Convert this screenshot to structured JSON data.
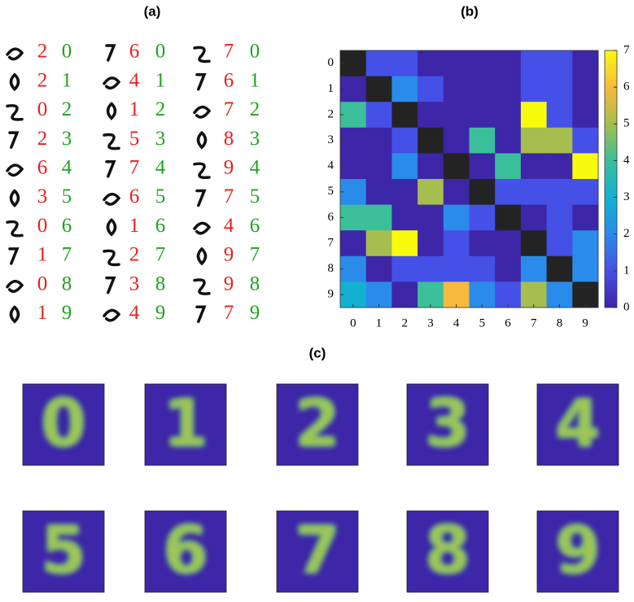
{
  "panel_a": {
    "title": "(a)",
    "rows": [
      [
        [
          2,
          0
        ],
        [
          6,
          0
        ],
        [
          7,
          0
        ]
      ],
      [
        [
          2,
          1
        ],
        [
          4,
          1
        ],
        [
          6,
          1
        ]
      ],
      [
        [
          0,
          2
        ],
        [
          1,
          2
        ],
        [
          7,
          2
        ]
      ],
      [
        [
          2,
          3
        ],
        [
          5,
          3
        ],
        [
          8,
          3
        ]
      ],
      [
        [
          6,
          4
        ],
        [
          7,
          4
        ],
        [
          9,
          4
        ]
      ],
      [
        [
          3,
          5
        ],
        [
          6,
          5
        ],
        [
          7,
          5
        ]
      ],
      [
        [
          0,
          6
        ],
        [
          1,
          6
        ],
        [
          4,
          6
        ]
      ],
      [
        [
          1,
          7
        ],
        [
          2,
          7
        ],
        [
          9,
          7
        ]
      ],
      [
        [
          0,
          8
        ],
        [
          3,
          8
        ],
        [
          9,
          8
        ]
      ],
      [
        [
          1,
          9
        ],
        [
          4,
          9
        ],
        [
          7,
          9
        ]
      ]
    ]
  },
  "chart_data": {
    "type": "heatmap",
    "title": "(b)",
    "x": [
      0,
      1,
      2,
      3,
      4,
      5,
      6,
      7,
      8,
      9
    ],
    "y": [
      0,
      1,
      2,
      3,
      4,
      5,
      6,
      7,
      8,
      9
    ],
    "values": [
      [
        null,
        1,
        1,
        0,
        0,
        0,
        0,
        1,
        1,
        0
      ],
      [
        0,
        null,
        2,
        1,
        0,
        0,
        0,
        1,
        1,
        0
      ],
      [
        4,
        1,
        null,
        0,
        0,
        0,
        0,
        7,
        1,
        0
      ],
      [
        0,
        0,
        1,
        null,
        0,
        4,
        0,
        5,
        5,
        1
      ],
      [
        0,
        0,
        2,
        0,
        null,
        0,
        4,
        0,
        0,
        7
      ],
      [
        2,
        0,
        0,
        5,
        0,
        null,
        1,
        1,
        1,
        1
      ],
      [
        4,
        4,
        0,
        0,
        2,
        1,
        null,
        0,
        1,
        0
      ],
      [
        0,
        5,
        7,
        0,
        1,
        0,
        0,
        null,
        1,
        2
      ],
      [
        2,
        0,
        1,
        1,
        1,
        1,
        0,
        2,
        null,
        2
      ],
      [
        3,
        2,
        0,
        4,
        6,
        2,
        1,
        5,
        2,
        null
      ]
    ],
    "zlim": [
      0,
      7
    ],
    "zticks": [
      0,
      1,
      2,
      3,
      4,
      5,
      6,
      7
    ],
    "colormap": [
      "#3e26a8",
      "#4550e6",
      "#2a8bea",
      "#12b1d0",
      "#3bbf9a",
      "#a6bd4f",
      "#f7ba3c",
      "#f9fb0e"
    ],
    "null_color": "#232323"
  },
  "panel_c": {
    "title": "(c)",
    "digits": [
      0,
      1,
      2,
      3,
      4,
      5,
      6,
      7,
      8,
      9
    ]
  }
}
